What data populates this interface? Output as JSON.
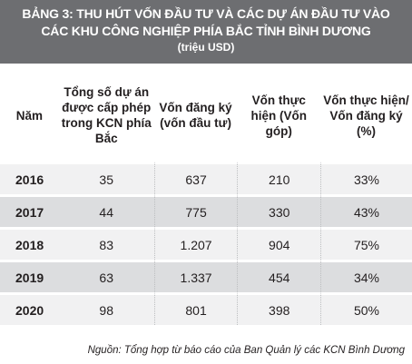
{
  "title": {
    "line1": "BẢNG 3: THU HÚT VỐN ĐẦU TƯ VÀ CÁC DỰ ÁN ĐẦU TƯ VÀO",
    "line2": "CÁC KHU CÔNG NGHIỆP PHÍA BẮC TỈNH BÌNH DƯƠNG",
    "unit": "(triệu USD)"
  },
  "table": {
    "headers": [
      "Năm",
      "Tổng số dự án được cấp phép trong KCN phía Bắc",
      "Vốn đăng ký (vốn đầu tư)",
      "Vốn thực hiện (Vốn góp)",
      "Vốn thực hiện/ Vốn đăng ký (%)"
    ],
    "rows": [
      {
        "year": "2016",
        "projects": "35",
        "registered": "637",
        "realized": "210",
        "ratio": "33%"
      },
      {
        "year": "2017",
        "projects": "44",
        "registered": "775",
        "realized": "330",
        "ratio": "43%"
      },
      {
        "year": "2018",
        "projects": "83",
        "registered": "1.207",
        "realized": "904",
        "ratio": "75%"
      },
      {
        "year": "2019",
        "projects": "63",
        "registered": "1.337",
        "realized": "454",
        "ratio": "34%"
      },
      {
        "year": "2020",
        "projects": "98",
        "registered": "801",
        "realized": "398",
        "ratio": "50%"
      }
    ]
  },
  "source": "Nguồn: Tổng hợp từ báo cáo của Ban Quản lý các KCN Bình Dương",
  "colors": {
    "title_bg": "#6d6e71",
    "row_light": "#f1f1f2",
    "row_dark": "#dcdddf"
  }
}
